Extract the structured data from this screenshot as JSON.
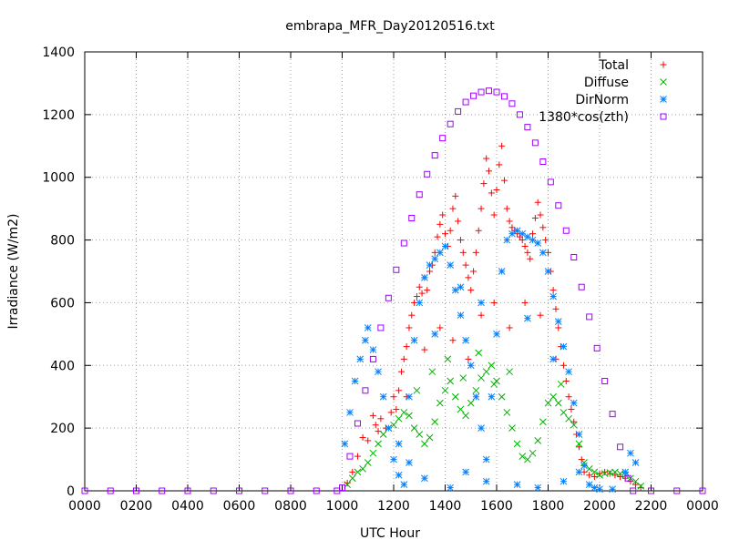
{
  "chart_data": {
    "type": "scatter",
    "title": "embrapa_MFR_Day20120516.txt",
    "xlabel": "UTC Hour",
    "ylabel": "Irradiance (W/m2)",
    "xlim": [
      0,
      24
    ],
    "ylim": [
      0,
      1400
    ],
    "x_ticks": [
      0,
      2,
      4,
      6,
      8,
      10,
      12,
      14,
      16,
      18,
      20,
      22,
      24
    ],
    "x_tick_labels": [
      "0000",
      "0200",
      "0400",
      "0600",
      "0800",
      "1000",
      "1200",
      "1400",
      "1600",
      "1800",
      "2000",
      "2200",
      "0000"
    ],
    "y_ticks": [
      0,
      200,
      400,
      600,
      800,
      1000,
      1200,
      1400
    ],
    "y_tick_labels": [
      "0",
      "200",
      "400",
      "600",
      "800",
      "1000",
      "1200",
      "1400"
    ],
    "grid": true,
    "legend_position": "top-right",
    "series": [
      {
        "name": "Total",
        "marker": "plus",
        "color": "#ff0000",
        "points": [
          [
            10.2,
            25
          ],
          [
            10.4,
            60
          ],
          [
            10.6,
            110
          ],
          [
            10.8,
            170
          ],
          [
            11.0,
            160
          ],
          [
            11.2,
            240
          ],
          [
            11.3,
            210
          ],
          [
            11.4,
            190
          ],
          [
            11.5,
            230
          ],
          [
            11.7,
            200
          ],
          [
            11.9,
            250
          ],
          [
            12.0,
            300
          ],
          [
            12.1,
            260
          ],
          [
            12.2,
            320
          ],
          [
            12.3,
            380
          ],
          [
            12.4,
            420
          ],
          [
            12.5,
            460
          ],
          [
            12.6,
            520
          ],
          [
            12.7,
            560
          ],
          [
            12.8,
            600
          ],
          [
            12.9,
            620
          ],
          [
            13.0,
            650
          ],
          [
            13.1,
            630
          ],
          [
            13.2,
            680
          ],
          [
            13.3,
            640
          ],
          [
            13.4,
            700
          ],
          [
            13.5,
            720
          ],
          [
            13.6,
            760
          ],
          [
            13.7,
            810
          ],
          [
            13.8,
            850
          ],
          [
            13.9,
            880
          ],
          [
            14.0,
            820
          ],
          [
            14.1,
            780
          ],
          [
            14.2,
            830
          ],
          [
            14.3,
            900
          ],
          [
            14.4,
            940
          ],
          [
            14.5,
            860
          ],
          [
            14.6,
            800
          ],
          [
            14.7,
            760
          ],
          [
            14.8,
            720
          ],
          [
            14.9,
            680
          ],
          [
            15.0,
            640
          ],
          [
            15.1,
            700
          ],
          [
            15.2,
            760
          ],
          [
            15.3,
            830
          ],
          [
            15.4,
            900
          ],
          [
            15.5,
            980
          ],
          [
            15.6,
            1060
          ],
          [
            15.7,
            1020
          ],
          [
            15.8,
            950
          ],
          [
            15.9,
            880
          ],
          [
            16.0,
            960
          ],
          [
            16.1,
            1040
          ],
          [
            16.2,
            1100
          ],
          [
            16.3,
            990
          ],
          [
            16.4,
            900
          ],
          [
            16.5,
            860
          ],
          [
            16.6,
            840
          ],
          [
            16.7,
            830
          ],
          [
            16.8,
            820
          ],
          [
            16.9,
            810
          ],
          [
            17.0,
            800
          ],
          [
            17.1,
            780
          ],
          [
            17.2,
            760
          ],
          [
            17.3,
            740
          ],
          [
            17.4,
            820
          ],
          [
            17.5,
            870
          ],
          [
            17.6,
            920
          ],
          [
            17.7,
            880
          ],
          [
            17.8,
            840
          ],
          [
            17.9,
            800
          ],
          [
            18.0,
            760
          ],
          [
            18.1,
            700
          ],
          [
            18.2,
            640
          ],
          [
            18.3,
            580
          ],
          [
            18.4,
            520
          ],
          [
            18.5,
            460
          ],
          [
            18.6,
            400
          ],
          [
            18.7,
            350
          ],
          [
            18.8,
            300
          ],
          [
            18.9,
            260
          ],
          [
            19.0,
            220
          ],
          [
            19.1,
            180
          ],
          [
            19.2,
            140
          ],
          [
            19.3,
            100
          ],
          [
            19.4,
            60
          ],
          [
            19.6,
            50
          ],
          [
            19.8,
            45
          ],
          [
            20.0,
            55
          ],
          [
            20.2,
            60
          ],
          [
            20.4,
            55
          ],
          [
            20.6,
            50
          ],
          [
            20.8,
            45
          ],
          [
            21.0,
            40
          ],
          [
            21.2,
            30
          ],
          [
            21.4,
            20
          ],
          [
            21.6,
            10
          ],
          [
            12.5,
            300
          ],
          [
            13.2,
            450
          ],
          [
            13.8,
            520
          ],
          [
            14.3,
            480
          ],
          [
            14.9,
            420
          ],
          [
            15.4,
            560
          ],
          [
            15.9,
            600
          ],
          [
            16.5,
            520
          ],
          [
            17.1,
            600
          ],
          [
            17.7,
            560
          ],
          [
            18.3,
            420
          ]
        ]
      },
      {
        "name": "Diffuse",
        "marker": "cross",
        "color": "#00b000",
        "points": [
          [
            10.2,
            20
          ],
          [
            10.4,
            40
          ],
          [
            10.6,
            60
          ],
          [
            10.8,
            70
          ],
          [
            11.0,
            90
          ],
          [
            11.2,
            120
          ],
          [
            11.4,
            150
          ],
          [
            11.6,
            180
          ],
          [
            11.8,
            200
          ],
          [
            12.0,
            210
          ],
          [
            12.2,
            230
          ],
          [
            12.4,
            250
          ],
          [
            12.6,
            240
          ],
          [
            12.8,
            200
          ],
          [
            13.0,
            180
          ],
          [
            13.2,
            150
          ],
          [
            13.4,
            170
          ],
          [
            13.6,
            220
          ],
          [
            13.8,
            280
          ],
          [
            14.0,
            320
          ],
          [
            14.2,
            350
          ],
          [
            14.4,
            300
          ],
          [
            14.6,
            260
          ],
          [
            14.8,
            240
          ],
          [
            15.0,
            280
          ],
          [
            15.2,
            320
          ],
          [
            15.4,
            360
          ],
          [
            15.6,
            380
          ],
          [
            15.8,
            400
          ],
          [
            16.0,
            350
          ],
          [
            16.2,
            300
          ],
          [
            16.4,
            250
          ],
          [
            16.6,
            200
          ],
          [
            16.8,
            150
          ],
          [
            17.0,
            110
          ],
          [
            17.2,
            100
          ],
          [
            17.4,
            120
          ],
          [
            17.6,
            160
          ],
          [
            17.8,
            220
          ],
          [
            18.0,
            280
          ],
          [
            18.2,
            300
          ],
          [
            18.4,
            280
          ],
          [
            18.6,
            250
          ],
          [
            18.8,
            230
          ],
          [
            19.0,
            210
          ],
          [
            19.2,
            150
          ],
          [
            19.4,
            90
          ],
          [
            19.6,
            70
          ],
          [
            19.8,
            60
          ],
          [
            20.0,
            50
          ],
          [
            20.2,
            55
          ],
          [
            20.4,
            58
          ],
          [
            20.6,
            60
          ],
          [
            20.8,
            55
          ],
          [
            21.0,
            50
          ],
          [
            21.2,
            40
          ],
          [
            21.4,
            30
          ],
          [
            21.6,
            15
          ],
          [
            12.9,
            320
          ],
          [
            13.5,
            380
          ],
          [
            14.1,
            420
          ],
          [
            14.7,
            360
          ],
          [
            15.3,
            440
          ],
          [
            15.9,
            340
          ],
          [
            16.5,
            380
          ],
          [
            18.5,
            340
          ]
        ]
      },
      {
        "name": "DirNorm",
        "marker": "star",
        "color": "#0080ff",
        "points": [
          [
            10.1,
            150
          ],
          [
            10.3,
            250
          ],
          [
            10.5,
            350
          ],
          [
            10.7,
            420
          ],
          [
            10.9,
            480
          ],
          [
            11.0,
            520
          ],
          [
            11.2,
            450
          ],
          [
            11.4,
            380
          ],
          [
            11.6,
            300
          ],
          [
            11.8,
            200
          ],
          [
            12.0,
            100
          ],
          [
            12.2,
            50
          ],
          [
            12.4,
            20
          ],
          [
            12.6,
            300
          ],
          [
            12.8,
            480
          ],
          [
            13.0,
            600
          ],
          [
            13.2,
            680
          ],
          [
            13.4,
            720
          ],
          [
            13.6,
            740
          ],
          [
            13.8,
            760
          ],
          [
            14.0,
            780
          ],
          [
            14.2,
            720
          ],
          [
            14.4,
            640
          ],
          [
            14.6,
            560
          ],
          [
            14.8,
            480
          ],
          [
            15.0,
            400
          ],
          [
            15.2,
            300
          ],
          [
            15.4,
            200
          ],
          [
            15.6,
            100
          ],
          [
            15.8,
            300
          ],
          [
            16.0,
            500
          ],
          [
            16.2,
            700
          ],
          [
            16.4,
            800
          ],
          [
            16.6,
            820
          ],
          [
            16.8,
            830
          ],
          [
            17.0,
            820
          ],
          [
            17.2,
            810
          ],
          [
            17.4,
            800
          ],
          [
            17.6,
            790
          ],
          [
            17.8,
            760
          ],
          [
            18.0,
            700
          ],
          [
            18.2,
            620
          ],
          [
            18.4,
            540
          ],
          [
            18.6,
            460
          ],
          [
            18.8,
            380
          ],
          [
            19.0,
            280
          ],
          [
            19.2,
            180
          ],
          [
            19.4,
            80
          ],
          [
            19.6,
            20
          ],
          [
            19.8,
            10
          ],
          [
            20.0,
            5
          ],
          [
            20.5,
            5
          ],
          [
            21.0,
            60
          ],
          [
            21.2,
            120
          ],
          [
            21.4,
            90
          ],
          [
            12.2,
            150
          ],
          [
            12.6,
            90
          ],
          [
            13.2,
            40
          ],
          [
            14.2,
            10
          ],
          [
            14.8,
            60
          ],
          [
            15.6,
            30
          ],
          [
            16.8,
            20
          ],
          [
            17.6,
            10
          ],
          [
            18.6,
            30
          ],
          [
            19.2,
            60
          ],
          [
            13.6,
            500
          ],
          [
            14.6,
            650
          ],
          [
            15.4,
            600
          ],
          [
            17.2,
            550
          ],
          [
            18.2,
            420
          ]
        ]
      },
      {
        "name": "1380*cos(zth)",
        "marker": "square",
        "color": "#a000ff",
        "points": [
          [
            0.0,
            0
          ],
          [
            1.0,
            0
          ],
          [
            2.0,
            0
          ],
          [
            3.0,
            0
          ],
          [
            4.0,
            0
          ],
          [
            5.0,
            0
          ],
          [
            6.0,
            0
          ],
          [
            7.0,
            0
          ],
          [
            8.0,
            0
          ],
          [
            9.0,
            0
          ],
          [
            9.8,
            0
          ],
          [
            10.0,
            10
          ],
          [
            10.3,
            110
          ],
          [
            10.6,
            215
          ],
          [
            10.9,
            320
          ],
          [
            11.2,
            420
          ],
          [
            11.5,
            520
          ],
          [
            11.8,
            615
          ],
          [
            12.1,
            705
          ],
          [
            12.4,
            790
          ],
          [
            12.7,
            870
          ],
          [
            13.0,
            945
          ],
          [
            13.3,
            1010
          ],
          [
            13.6,
            1070
          ],
          [
            13.9,
            1125
          ],
          [
            14.2,
            1170
          ],
          [
            14.5,
            1210
          ],
          [
            14.8,
            1240
          ],
          [
            15.1,
            1260
          ],
          [
            15.4,
            1272
          ],
          [
            15.7,
            1276
          ],
          [
            16.0,
            1272
          ],
          [
            16.3,
            1258
          ],
          [
            16.6,
            1235
          ],
          [
            16.9,
            1200
          ],
          [
            17.2,
            1160
          ],
          [
            17.5,
            1110
          ],
          [
            17.8,
            1050
          ],
          [
            18.1,
            985
          ],
          [
            18.4,
            910
          ],
          [
            18.7,
            830
          ],
          [
            19.0,
            745
          ],
          [
            19.3,
            650
          ],
          [
            19.6,
            555
          ],
          [
            19.9,
            455
          ],
          [
            20.2,
            350
          ],
          [
            20.5,
            245
          ],
          [
            20.8,
            140
          ],
          [
            21.1,
            40
          ],
          [
            21.3,
            0
          ],
          [
            22.0,
            0
          ],
          [
            23.0,
            0
          ],
          [
            24.0,
            0
          ]
        ]
      }
    ]
  }
}
